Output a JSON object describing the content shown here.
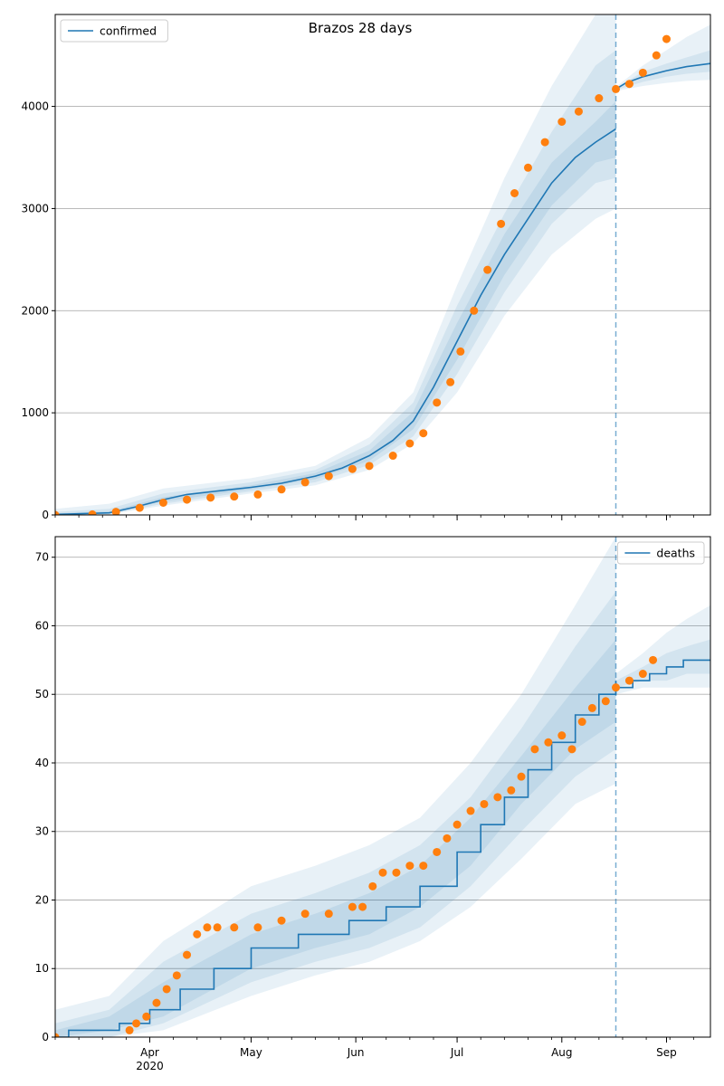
{
  "figure": {
    "title": "Brazos 28 days"
  },
  "chart_data": [
    {
      "id": "confirmed",
      "type": "line",
      "title": "Brazos 28 days",
      "xlabel": "",
      "ylabel": "",
      "x_range": [
        "2020-03-04",
        "2020-09-14"
      ],
      "ylim": [
        0,
        4900
      ],
      "yticks": [
        0,
        1000,
        2000,
        3000,
        4000
      ],
      "grid": "y",
      "legend_position": "upper-left",
      "series": [
        {
          "name": "confirmed",
          "role": "model-median",
          "color": "#1f77b4",
          "x": [
            "2020-03-04",
            "2020-03-20",
            "2020-03-28",
            "2020-04-05",
            "2020-04-12",
            "2020-04-20",
            "2020-05-01",
            "2020-05-10",
            "2020-05-20",
            "2020-05-28",
            "2020-06-05",
            "2020-06-12",
            "2020-06-18",
            "2020-06-24",
            "2020-07-01",
            "2020-07-08",
            "2020-07-15",
            "2020-07-22",
            "2020-07-29",
            "2020-08-05",
            "2020-08-11",
            "2020-08-17"
          ],
          "y": [
            5,
            20,
            80,
            150,
            200,
            230,
            270,
            310,
            380,
            460,
            580,
            730,
            920,
            1250,
            1700,
            2150,
            2550,
            2900,
            3250,
            3500,
            3650,
            3780
          ]
        },
        {
          "name": "",
          "role": "forecast-median",
          "color": "#1f77b4",
          "x": [
            "2020-08-17",
            "2020-08-20",
            "2020-08-25",
            "2020-09-01",
            "2020-09-07",
            "2020-09-14"
          ],
          "y": [
            4170,
            4230,
            4290,
            4350,
            4390,
            4420
          ]
        },
        {
          "name": "",
          "role": "observed",
          "color": "#ff7f0e",
          "x": [
            "2020-03-04",
            "2020-03-15",
            "2020-03-22",
            "2020-03-29",
            "2020-04-05",
            "2020-04-12",
            "2020-04-19",
            "2020-04-26",
            "2020-05-03",
            "2020-05-10",
            "2020-05-17",
            "2020-05-24",
            "2020-05-31",
            "2020-06-05",
            "2020-06-12",
            "2020-06-17",
            "2020-06-21",
            "2020-06-25",
            "2020-06-29",
            "2020-07-02",
            "2020-07-06",
            "2020-07-10",
            "2020-07-14",
            "2020-07-18",
            "2020-07-22",
            "2020-07-27",
            "2020-08-01",
            "2020-08-06",
            "2020-08-12",
            "2020-08-17",
            "2020-08-21",
            "2020-08-25",
            "2020-08-29",
            "2020-09-01"
          ],
          "y": [
            0,
            5,
            30,
            70,
            120,
            150,
            170,
            180,
            200,
            250,
            320,
            380,
            450,
            480,
            580,
            700,
            800,
            1100,
            1300,
            1600,
            2000,
            2400,
            2850,
            3150,
            3400,
            3650,
            3850,
            3950,
            4080,
            4170,
            4220,
            4330,
            4500,
            4660
          ]
        }
      ],
      "bands": [
        {
          "label": "outer",
          "color": "#1f77b4",
          "opacity": 0.1,
          "x": [
            "2020-03-04",
            "2020-03-20",
            "2020-04-05",
            "2020-05-01",
            "2020-05-20",
            "2020-06-05",
            "2020-06-18",
            "2020-07-01",
            "2020-07-15",
            "2020-07-29",
            "2020-08-11",
            "2020-08-17"
          ],
          "lower": [
            0,
            5,
            90,
            210,
            290,
            440,
            700,
            1200,
            1950,
            2550,
            2900,
            3000
          ],
          "upper": [
            60,
            110,
            260,
            360,
            480,
            760,
            1200,
            2250,
            3300,
            4200,
            4900,
            4950
          ]
        },
        {
          "label": "middle",
          "color": "#1f77b4",
          "opacity": 0.1,
          "x": [
            "2020-03-04",
            "2020-03-20",
            "2020-04-05",
            "2020-05-01",
            "2020-05-20",
            "2020-06-05",
            "2020-06-18",
            "2020-07-01",
            "2020-07-15",
            "2020-07-29",
            "2020-08-11",
            "2020-08-17"
          ],
          "lower": [
            0,
            10,
            110,
            230,
            320,
            490,
            770,
            1380,
            2180,
            2850,
            3250,
            3300
          ],
          "upper": [
            30,
            60,
            210,
            320,
            440,
            690,
            1100,
            2050,
            2950,
            3750,
            4400,
            4550
          ]
        },
        {
          "label": "inner",
          "color": "#1f77b4",
          "opacity": 0.1,
          "x": [
            "2020-03-04",
            "2020-03-20",
            "2020-04-05",
            "2020-05-01",
            "2020-05-20",
            "2020-06-05",
            "2020-06-18",
            "2020-07-01",
            "2020-07-15",
            "2020-07-29",
            "2020-08-11",
            "2020-08-17"
          ],
          "lower": [
            0,
            15,
            130,
            250,
            350,
            530,
            840,
            1520,
            2350,
            3030,
            3450,
            3500
          ],
          "upper": [
            15,
            35,
            175,
            290,
            410,
            630,
            1010,
            1880,
            2750,
            3450,
            3850,
            4050
          ]
        },
        {
          "label": "forecast-outer",
          "color": "#1f77b4",
          "opacity": 0.1,
          "x": [
            "2020-08-17",
            "2020-08-25",
            "2020-09-01",
            "2020-09-07",
            "2020-09-14"
          ],
          "lower": [
            4150,
            4200,
            4230,
            4250,
            4260
          ],
          "upper": [
            4190,
            4400,
            4550,
            4680,
            4800
          ]
        },
        {
          "label": "forecast-inner",
          "color": "#1f77b4",
          "opacity": 0.1,
          "x": [
            "2020-08-17",
            "2020-08-25",
            "2020-09-01",
            "2020-09-07",
            "2020-09-14"
          ],
          "lower": [
            4160,
            4240,
            4290,
            4320,
            4340
          ],
          "upper": [
            4180,
            4340,
            4420,
            4480,
            4550
          ]
        }
      ],
      "vline": {
        "x": "2020-08-17",
        "color": "#1f77b4",
        "style": "dashed"
      },
      "xticks": [
        {
          "x": "2020-04-01",
          "label": "Apr"
        },
        {
          "x": "2020-05-01",
          "label": "May"
        },
        {
          "x": "2020-06-01",
          "label": "Jun"
        },
        {
          "x": "2020-07-01",
          "label": "Jul"
        },
        {
          "x": "2020-08-01",
          "label": "Aug"
        },
        {
          "x": "2020-09-01",
          "label": "Sep"
        }
      ],
      "xtick_sublabel": "2020",
      "show_xtick_labels": false
    },
    {
      "id": "deaths",
      "type": "line",
      "title": "",
      "xlabel": "",
      "ylabel": "",
      "x_range": [
        "2020-03-04",
        "2020-09-14"
      ],
      "ylim": [
        0,
        73
      ],
      "yticks": [
        0,
        10,
        20,
        30,
        40,
        50,
        60,
        70
      ],
      "grid": "y",
      "legend_position": "upper-right",
      "series": [
        {
          "name": "deaths",
          "role": "model-median",
          "color": "#1f77b4",
          "step": true,
          "x": [
            "2020-03-04",
            "2020-03-08",
            "2020-03-23",
            "2020-04-01",
            "2020-04-10",
            "2020-04-20",
            "2020-05-01",
            "2020-05-15",
            "2020-05-30",
            "2020-06-10",
            "2020-06-20",
            "2020-07-01",
            "2020-07-08",
            "2020-07-15",
            "2020-07-22",
            "2020-07-29",
            "2020-08-05",
            "2020-08-12",
            "2020-08-17"
          ],
          "y": [
            0,
            1,
            2,
            4,
            7,
            10,
            13,
            15,
            17,
            19,
            22,
            27,
            31,
            35,
            39,
            43,
            47,
            50,
            52
          ]
        },
        {
          "name": "",
          "role": "forecast-median",
          "color": "#1f77b4",
          "step": true,
          "x": [
            "2020-08-17",
            "2020-08-22",
            "2020-08-27",
            "2020-09-01",
            "2020-09-06",
            "2020-09-14"
          ],
          "y": [
            51,
            52,
            53,
            54,
            55,
            55
          ]
        },
        {
          "name": "",
          "role": "observed",
          "color": "#ff7f0e",
          "x": [
            "2020-03-04",
            "2020-03-26",
            "2020-03-28",
            "2020-03-31",
            "2020-04-03",
            "2020-04-06",
            "2020-04-09",
            "2020-04-12",
            "2020-04-15",
            "2020-04-18",
            "2020-04-21",
            "2020-04-26",
            "2020-05-03",
            "2020-05-10",
            "2020-05-17",
            "2020-05-24",
            "2020-05-31",
            "2020-06-03",
            "2020-06-06",
            "2020-06-09",
            "2020-06-13",
            "2020-06-17",
            "2020-06-21",
            "2020-06-25",
            "2020-06-28",
            "2020-07-01",
            "2020-07-05",
            "2020-07-09",
            "2020-07-13",
            "2020-07-17",
            "2020-07-20",
            "2020-07-24",
            "2020-07-28",
            "2020-08-01",
            "2020-08-04",
            "2020-08-07",
            "2020-08-10",
            "2020-08-14",
            "2020-08-17",
            "2020-08-21",
            "2020-08-25",
            "2020-08-28"
          ],
          "y": [
            0,
            1,
            2,
            3,
            5,
            7,
            9,
            12,
            15,
            16,
            16,
            16,
            16,
            17,
            18,
            18,
            19,
            19,
            22,
            24,
            24,
            25,
            25,
            27,
            29,
            31,
            33,
            34,
            35,
            36,
            38,
            42,
            43,
            44,
            42,
            46,
            48,
            49,
            51,
            52,
            53,
            55
          ]
        }
      ],
      "bands": [
        {
          "label": "outer",
          "color": "#1f77b4",
          "opacity": 0.1,
          "x": [
            "2020-03-04",
            "2020-03-20",
            "2020-04-05",
            "2020-05-01",
            "2020-05-20",
            "2020-06-05",
            "2020-06-20",
            "2020-07-05",
            "2020-07-20",
            "2020-08-05",
            "2020-08-17"
          ],
          "lower": [
            0,
            0,
            1,
            6,
            9,
            11,
            14,
            19,
            26,
            34,
            37
          ],
          "upper": [
            4,
            6,
            14,
            22,
            25,
            28,
            32,
            40,
            50,
            63,
            73
          ]
        },
        {
          "label": "middle",
          "color": "#1f77b4",
          "opacity": 0.1,
          "x": [
            "2020-03-04",
            "2020-03-20",
            "2020-04-05",
            "2020-05-01",
            "2020-05-20",
            "2020-06-05",
            "2020-06-20",
            "2020-07-05",
            "2020-07-20",
            "2020-08-05",
            "2020-08-17"
          ],
          "lower": [
            0,
            0,
            2,
            8,
            11,
            13,
            16,
            22,
            30,
            38,
            42
          ],
          "upper": [
            2,
            4,
            11,
            18,
            21,
            24,
            28,
            35,
            45,
            57,
            65
          ]
        },
        {
          "label": "inner",
          "color": "#1f77b4",
          "opacity": 0.1,
          "x": [
            "2020-03-04",
            "2020-03-20",
            "2020-04-05",
            "2020-05-01",
            "2020-05-20",
            "2020-06-05",
            "2020-06-20",
            "2020-07-05",
            "2020-07-20",
            "2020-08-05",
            "2020-08-17"
          ],
          "lower": [
            0,
            1,
            3,
            10,
            13,
            15,
            19,
            25,
            34,
            42,
            46
          ],
          "upper": [
            1,
            3,
            8,
            15,
            18,
            21,
            25,
            32,
            41,
            51,
            58
          ]
        },
        {
          "label": "forecast-outer",
          "color": "#1f77b4",
          "opacity": 0.1,
          "x": [
            "2020-08-17",
            "2020-08-25",
            "2020-09-01",
            "2020-09-07",
            "2020-09-14"
          ],
          "lower": [
            50,
            51,
            51,
            51,
            51
          ],
          "upper": [
            53,
            56,
            59,
            61,
            63
          ]
        },
        {
          "label": "forecast-inner",
          "color": "#1f77b4",
          "opacity": 0.1,
          "x": [
            "2020-08-17",
            "2020-08-25",
            "2020-09-01",
            "2020-09-07",
            "2020-09-14"
          ],
          "lower": [
            51,
            52,
            52,
            53,
            53
          ],
          "upper": [
            52,
            54,
            56,
            57,
            58
          ]
        }
      ],
      "vline": {
        "x": "2020-08-17",
        "color": "#1f77b4",
        "style": "dashed"
      },
      "xticks": [
        {
          "x": "2020-04-01",
          "label": "Apr"
        },
        {
          "x": "2020-05-01",
          "label": "May"
        },
        {
          "x": "2020-06-01",
          "label": "Jun"
        },
        {
          "x": "2020-07-01",
          "label": "Jul"
        },
        {
          "x": "2020-08-01",
          "label": "Aug"
        },
        {
          "x": "2020-09-01",
          "label": "Sep"
        }
      ],
      "xtick_sublabel": "2020",
      "show_xtick_labels": true
    }
  ]
}
